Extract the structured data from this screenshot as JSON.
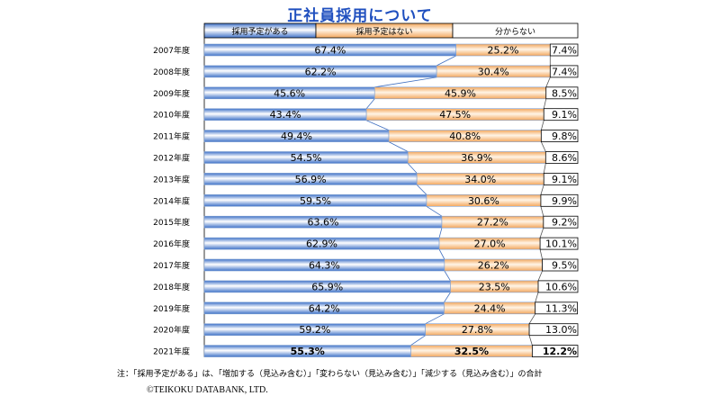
{
  "chart_data": {
    "type": "bar",
    "orientation": "horizontal",
    "stacked": "percent",
    "title": "正社員採用について",
    "categories": [
      "2007年度",
      "2008年度",
      "2009年度",
      "2010年度",
      "2011年度",
      "2012年度",
      "2013年度",
      "2014年度",
      "2015年度",
      "2016年度",
      "2017年度",
      "2018年度",
      "2019年度",
      "2020年度",
      "2021年度"
    ],
    "series": [
      {
        "name": "採用予定がある",
        "color": "#6f9bd8",
        "values": [
          67.4,
          62.2,
          45.6,
          43.4,
          49.4,
          54.5,
          56.9,
          59.5,
          63.6,
          62.9,
          64.3,
          65.9,
          64.2,
          59.2,
          55.3
        ]
      },
      {
        "name": "採用予定はない",
        "color": "#f5b779",
        "values": [
          25.2,
          30.4,
          45.9,
          47.5,
          40.8,
          36.9,
          34.0,
          30.6,
          27.2,
          27.0,
          26.2,
          23.5,
          24.4,
          27.8,
          32.5
        ]
      },
      {
        "name": "分からない",
        "color": "#ffffff",
        "values": [
          7.4,
          7.4,
          8.5,
          9.1,
          9.8,
          8.6,
          9.1,
          9.9,
          9.2,
          10.1,
          9.5,
          10.6,
          11.3,
          13.0,
          12.2
        ]
      }
    ],
    "data_labels": [
      [
        "67.4%",
        "62.2%",
        "45.6%",
        "43.4%",
        "49.4%",
        "54.5%",
        "56.9%",
        "59.5%",
        "63.6%",
        "62.9%",
        "64.3%",
        "65.9%",
        "64.2%",
        "59.2%",
        "55.3%"
      ],
      [
        "25.2%",
        "30.4%",
        "45.9%",
        "47.5%",
        "40.8%",
        "36.9%",
        "34.0%",
        "30.6%",
        "27.2%",
        "27.0%",
        "26.2%",
        "23.5%",
        "24.4%",
        "27.8%",
        "32.5%"
      ],
      [
        "7.4%",
        "7.4%",
        "8.5%",
        "9.1%",
        "9.8%",
        "8.6%",
        "9.1%",
        "9.9%",
        "9.2%",
        "10.1%",
        "9.5%",
        "10.6%",
        "11.3%",
        "13.0%",
        "12.2%"
      ]
    ],
    "highlight_category": "2021年度",
    "legend_position": "top",
    "note": "注：「採用予定がある」は、「増加する（見込み含む）」「変わらない（見込み含む）」「減少する（見込み含む）」の合計",
    "copyright": "©TEIKOKU DATABANK, LTD."
  }
}
